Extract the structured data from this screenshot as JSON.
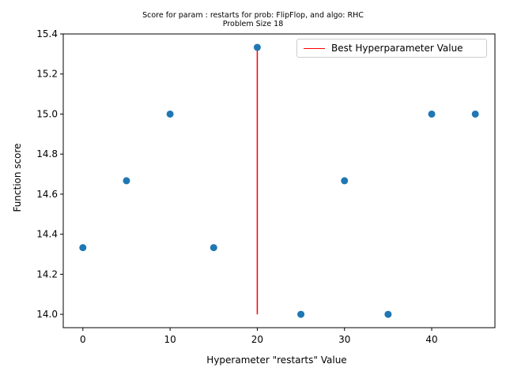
{
  "chart_data": {
    "type": "scatter",
    "title_line1": "Score for param : restarts for prob: FlipFlop, and algo: RHC",
    "title_line2": "Problem Size 18",
    "xlabel": "Hyperameter \"restarts\" Value",
    "ylabel": "Function score",
    "xlim": [
      -2.25,
      47.25
    ],
    "ylim": [
      13.9333,
      15.4
    ],
    "x_ticks": [
      0,
      10,
      20,
      30,
      40
    ],
    "y_ticks": [
      14.0,
      14.2,
      14.4,
      14.6,
      14.8,
      15.0,
      15.2,
      15.4
    ],
    "x_tick_labels": [
      "0",
      "10",
      "20",
      "30",
      "40"
    ],
    "y_tick_labels": [
      "14.0",
      "14.2",
      "14.4",
      "14.6",
      "14.8",
      "15.0",
      "15.2",
      "15.4"
    ],
    "points": {
      "x": [
        0,
        5,
        10,
        15,
        20,
        25,
        30,
        35,
        40,
        45
      ],
      "y": [
        14.333,
        14.667,
        15.0,
        14.333,
        15.333,
        14.0,
        14.667,
        14.0,
        15.0,
        15.0
      ],
      "color": "#1f77b4"
    },
    "best_line": {
      "name": "Best Hyperparameter Value",
      "x": 20,
      "y_range": [
        14.0,
        15.333
      ],
      "color": "#ff0000"
    },
    "legend_position": "top-right",
    "grid": false
  }
}
